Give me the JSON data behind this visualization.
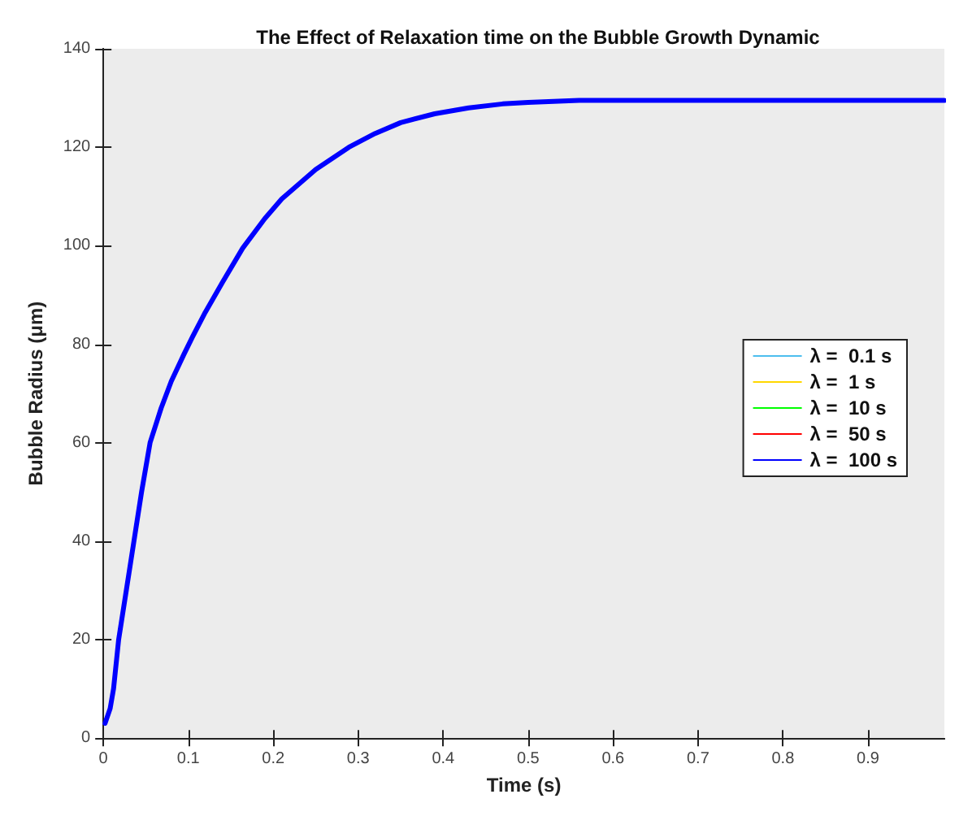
{
  "chart_data": {
    "type": "line",
    "title": "The Effect of Relaxation time on the Bubble Growth Dynamic",
    "xlabel": "Time (s)",
    "ylabel": "Bubble Radius (μm)",
    "x": [
      0.002,
      0.008,
      0.012,
      0.018,
      0.027,
      0.036,
      0.045,
      0.055,
      0.068,
      0.08,
      0.095,
      0.105,
      0.12,
      0.14,
      0.164,
      0.19,
      0.21,
      0.25,
      0.289,
      0.32,
      0.35,
      0.39,
      0.43,
      0.47,
      0.5,
      0.53,
      0.56,
      0.6,
      0.7,
      0.8,
      0.9,
      0.99
    ],
    "series": [
      {
        "name": "λ =  0.1 s",
        "color": "#4dbeee",
        "line_style": "solid",
        "values": [
          null,
          null,
          null,
          null,
          null,
          null,
          null,
          null,
          null,
          null,
          null,
          null,
          null,
          null,
          null,
          null,
          null,
          null,
          null,
          null,
          null,
          null,
          null,
          null,
          null,
          null,
          null,
          null,
          null,
          null,
          null,
          null
        ]
      },
      {
        "name": "λ =  1 s",
        "color": "#ffd700",
        "line_style": "dashed",
        "values": [
          null,
          null,
          null,
          null,
          null,
          null,
          null,
          null,
          null,
          null,
          null,
          null,
          null,
          null,
          null,
          null,
          null,
          null,
          null,
          null,
          null,
          null,
          null,
          null,
          null,
          null,
          null,
          null,
          null,
          null,
          null,
          null
        ]
      },
      {
        "name": "λ =  10 s",
        "color": "#00ff00",
        "line_style": "dotted",
        "values": [
          null,
          null,
          null,
          null,
          null,
          null,
          null,
          null,
          null,
          null,
          null,
          null,
          null,
          null,
          null,
          null,
          null,
          null,
          null,
          null,
          null,
          null,
          null,
          null,
          null,
          null,
          null,
          null,
          null,
          null,
          null,
          null
        ]
      },
      {
        "name": "λ =  50 s",
        "color": "#ff0000",
        "line_style": "dashdot",
        "values": [
          null,
          null,
          null,
          null,
          null,
          null,
          null,
          null,
          null,
          null,
          null,
          null,
          null,
          null,
          null,
          null,
          null,
          null,
          null,
          null,
          null,
          null,
          null,
          null,
          null,
          null,
          null,
          null,
          null,
          null,
          null,
          null
        ]
      },
      {
        "name": "λ =  100 s",
        "color": "#0000ff",
        "line_style": "solid",
        "values": [
          3,
          6,
          10,
          20,
          30,
          40,
          50,
          60,
          67,
          72.5,
          78,
          81.5,
          86.5,
          92.5,
          99.5,
          105.5,
          109.5,
          115.5,
          120,
          122.8,
          125,
          126.8,
          128,
          128.8,
          129.1,
          129.3,
          129.5,
          129.5,
          129.5,
          129.5,
          129.5,
          129.5
        ]
      }
    ],
    "xlim": [
      0,
      0.99
    ],
    "xticks": [
      0,
      0.1,
      0.2,
      0.3,
      0.4,
      0.5,
      0.6,
      0.7,
      0.8,
      0.9
    ],
    "ylim": [
      0,
      140
    ],
    "yticks": [
      0,
      20,
      40,
      60,
      80,
      100,
      120,
      140
    ],
    "grid": false,
    "legend": "right",
    "marker": "none"
  }
}
